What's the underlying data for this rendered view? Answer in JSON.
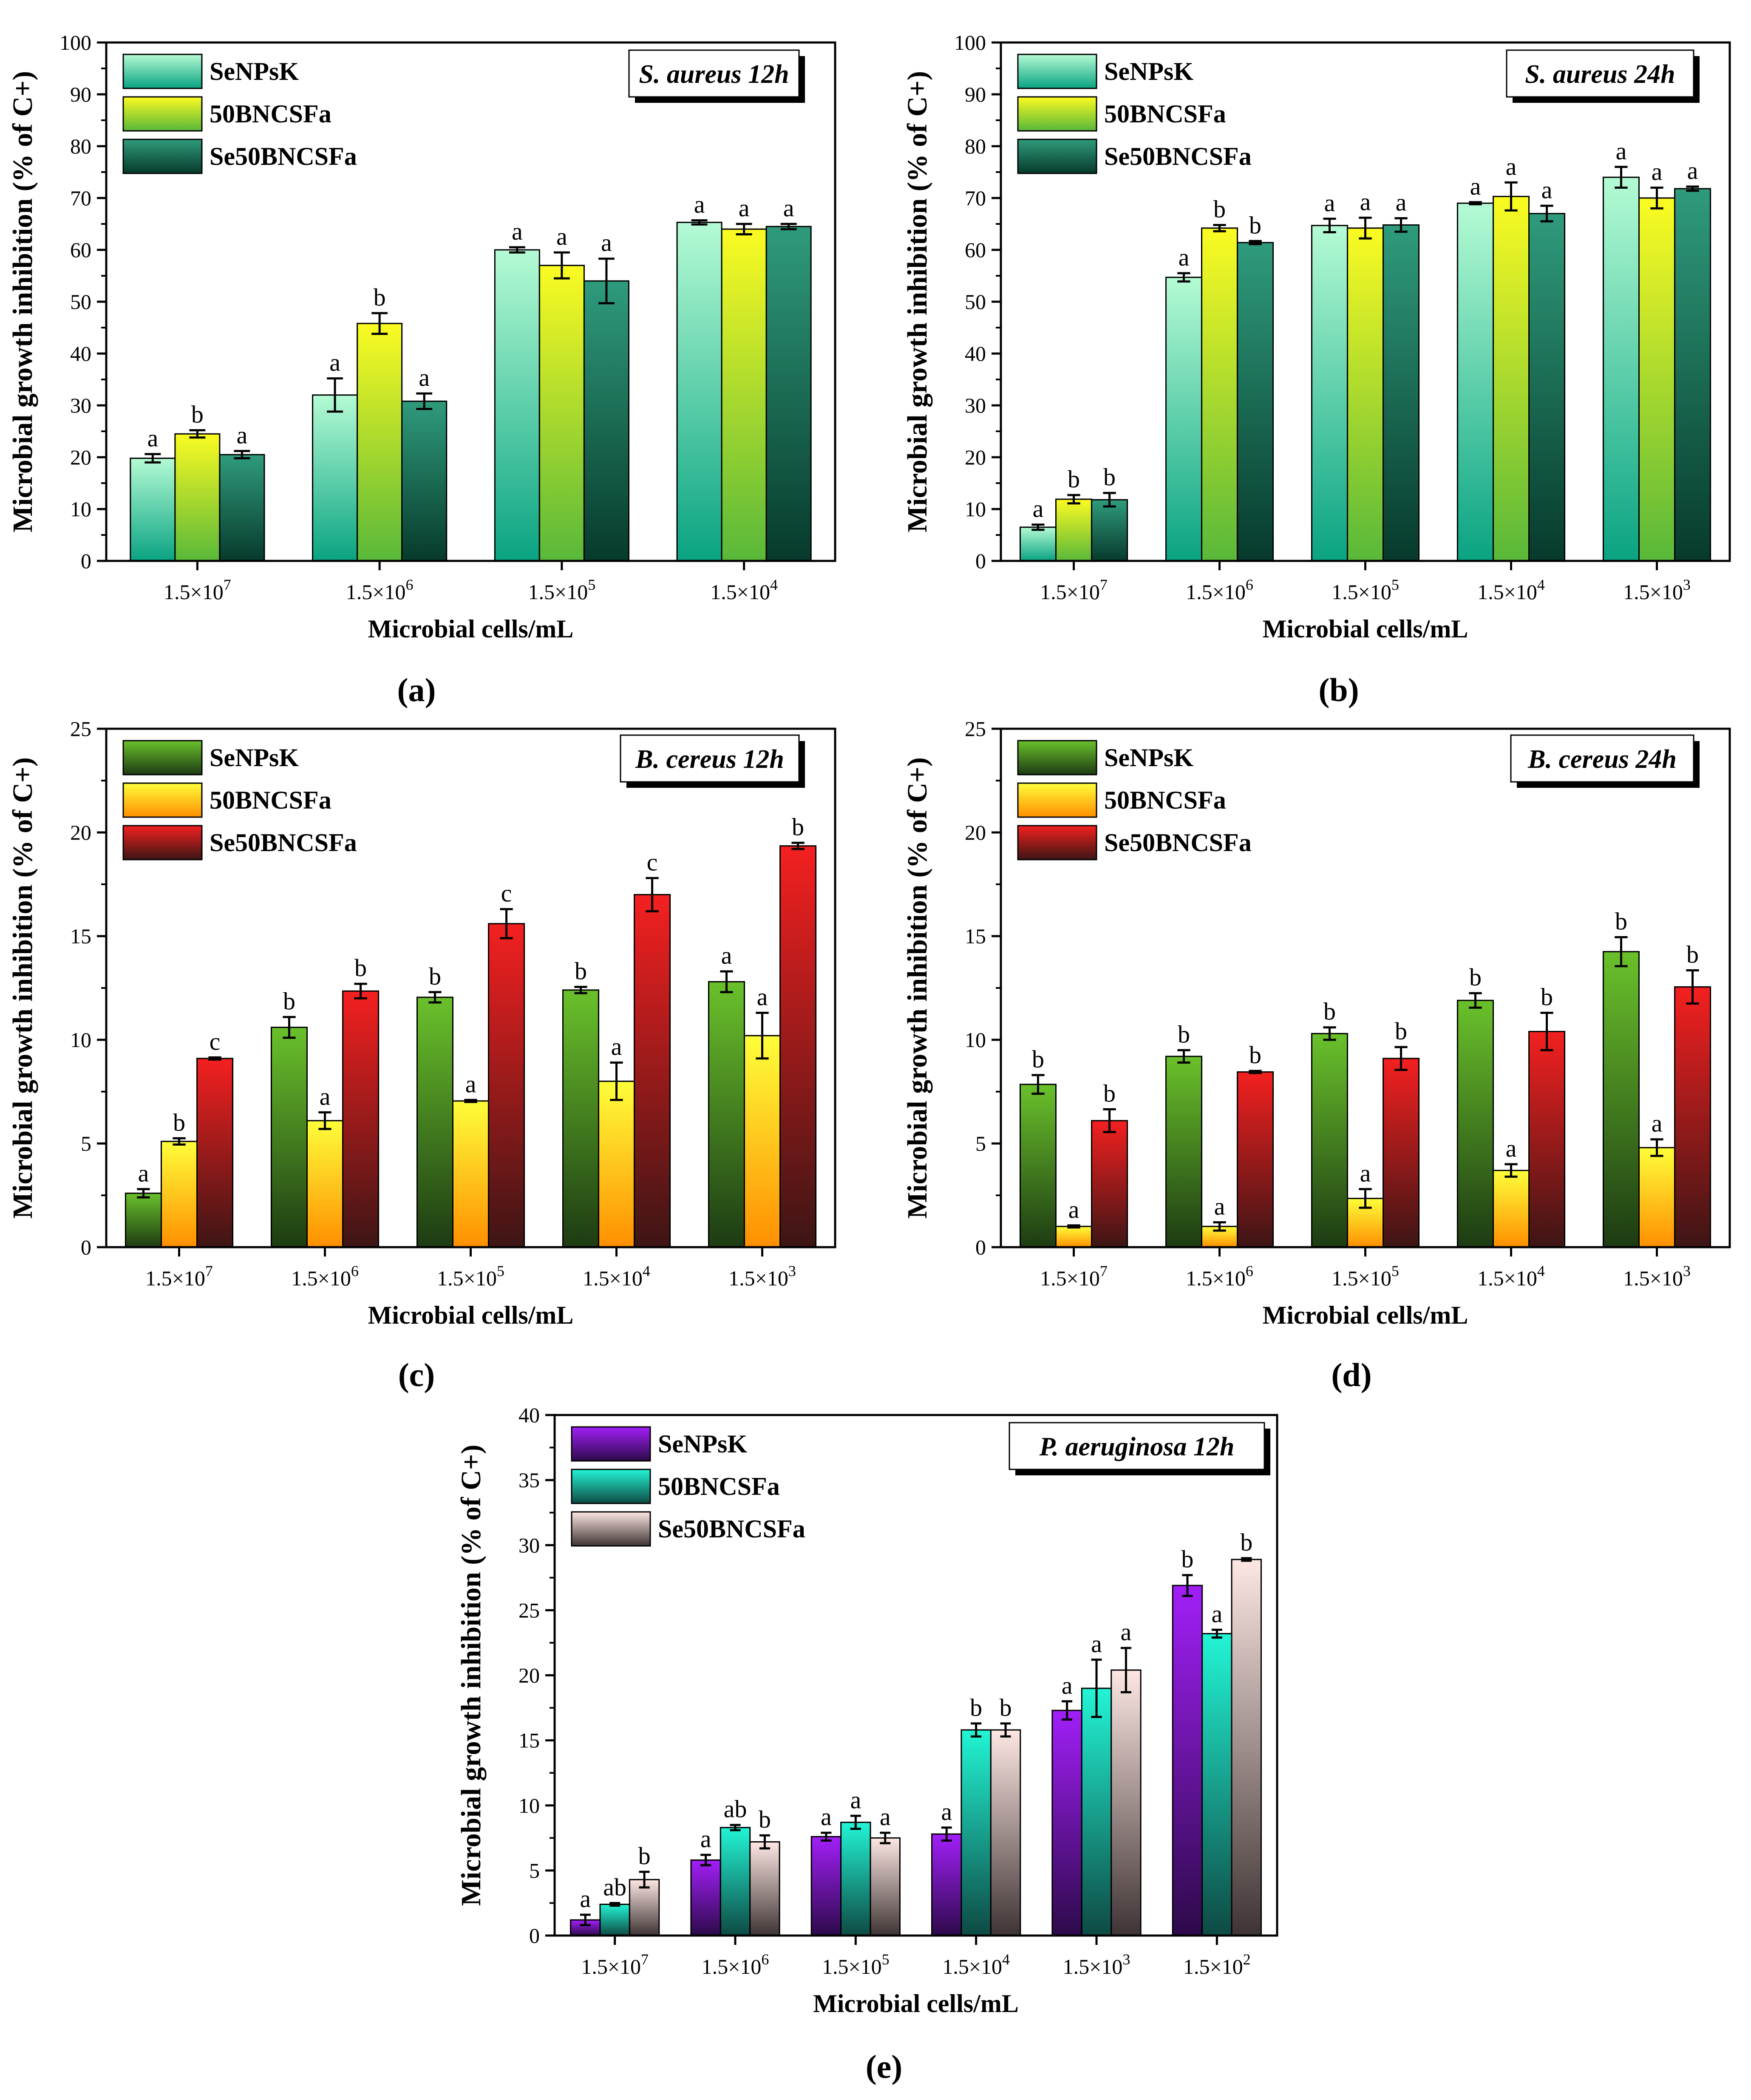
{
  "panel_tags": [
    "(a)",
    "(b)",
    "(c)",
    "(d)",
    "(e)"
  ],
  "series_colors": {
    "s_aureus": [
      [
        "#b4fbd4",
        "#0aa382"
      ],
      [
        "#fbfb22",
        "#59b83a"
      ],
      [
        "#2f9b7c",
        "#073a2c"
      ]
    ],
    "b_cereus": [
      [
        "#6ac12b",
        "#1d3b13"
      ],
      [
        "#fefe3a",
        "#ff8f00"
      ],
      [
        "#f42020",
        "#3d1515"
      ]
    ],
    "p_aeruginosa": [
      [
        "#a21ff8",
        "#2d0a4a"
      ],
      [
        "#22f5d5",
        "#0e4a44"
      ],
      [
        "#fde7e3",
        "#3e3434"
      ]
    ]
  },
  "chart_data": [
    {
      "panel": "(a)",
      "type": "bar",
      "inset_label": "S. aureus 12h",
      "xlabel": "Microbial cells/mL",
      "ylabel": "Microbial growth inhibition (% of C+)",
      "ylim": [
        0,
        100
      ],
      "yticks": [
        0,
        10,
        20,
        30,
        40,
        50,
        60,
        70,
        80,
        90,
        100
      ],
      "categories": [
        {
          "base": "1.5×10",
          "exp": "7"
        },
        {
          "base": "1.5×10",
          "exp": "6"
        },
        {
          "base": "1.5×10",
          "exp": "5"
        },
        {
          "base": "1.5×10",
          "exp": "4"
        }
      ],
      "legend_position": "top-left",
      "series": [
        {
          "name": "SeNPsK",
          "values": [
            19.8,
            32.0,
            60.0,
            65.3
          ],
          "errors": [
            0.8,
            3.2,
            0.5,
            0.4
          ],
          "labels": [
            "a",
            "a",
            "a",
            "a"
          ]
        },
        {
          "name": "50BNCSFa",
          "values": [
            24.5,
            45.8,
            57.0,
            64.0
          ],
          "errors": [
            0.7,
            2.0,
            2.5,
            1.0
          ],
          "labels": [
            "b",
            "b",
            "a",
            "a"
          ]
        },
        {
          "name": "Se50BNCSFa",
          "values": [
            20.5,
            30.8,
            54.0,
            64.5
          ],
          "errors": [
            0.7,
            1.5,
            4.3,
            0.5
          ],
          "labels": [
            "a",
            "a",
            "a",
            "a"
          ]
        }
      ]
    },
    {
      "panel": "(b)",
      "type": "bar",
      "inset_label": "S. aureus 24h",
      "xlabel": "Microbial cells/mL",
      "ylabel": "Microbial growth inhibition (% of C+)",
      "ylim": [
        0,
        100
      ],
      "yticks": [
        0,
        10,
        20,
        30,
        40,
        50,
        60,
        70,
        80,
        90,
        100
      ],
      "categories": [
        {
          "base": "1.5×10",
          "exp": "7"
        },
        {
          "base": "1.5×10",
          "exp": "6"
        },
        {
          "base": "1.5×10",
          "exp": "5"
        },
        {
          "base": "1.5×10",
          "exp": "4"
        },
        {
          "base": "1.5×10",
          "exp": "3"
        }
      ],
      "legend_position": "top-left",
      "series": [
        {
          "name": "SeNPsK",
          "values": [
            6.5,
            54.7,
            64.7,
            69.0,
            74.0
          ],
          "errors": [
            0.5,
            0.8,
            1.3,
            0.2,
            2.0
          ],
          "labels": [
            "a",
            "a",
            "a",
            "a",
            "a"
          ]
        },
        {
          "name": "50BNCSFa",
          "values": [
            11.9,
            64.2,
            64.2,
            70.3,
            70.0
          ],
          "errors": [
            0.8,
            0.6,
            2.0,
            2.7,
            2.0
          ],
          "labels": [
            "b",
            "b",
            "a",
            "a",
            "a"
          ]
        },
        {
          "name": "Se50BNCSFa",
          "values": [
            11.8,
            61.4,
            64.8,
            67.0,
            71.8
          ],
          "errors": [
            1.3,
            0.3,
            1.3,
            1.5,
            0.4
          ],
          "labels": [
            "b",
            "b",
            "a",
            "a",
            "a"
          ]
        }
      ]
    },
    {
      "panel": "(c)",
      "type": "bar",
      "inset_label": "B. cereus 12h",
      "xlabel": "Microbial cells/mL",
      "ylabel": "Microbial growth inhibition (% of C+)",
      "ylim": [
        0,
        25
      ],
      "yticks": [
        0,
        5,
        10,
        15,
        20,
        25
      ],
      "categories": [
        {
          "base": "1.5×10",
          "exp": "7"
        },
        {
          "base": "1.5×10",
          "exp": "6"
        },
        {
          "base": "1.5×10",
          "exp": "5"
        },
        {
          "base": "1.5×10",
          "exp": "4"
        },
        {
          "base": "1.5×10",
          "exp": "3"
        }
      ],
      "legend_position": "top-left",
      "series": [
        {
          "name": "SeNPsK",
          "values": [
            2.6,
            10.6,
            12.05,
            12.4,
            12.8
          ],
          "errors": [
            0.2,
            0.5,
            0.25,
            0.15,
            0.5
          ],
          "labels": [
            "a",
            "b",
            "b",
            "b",
            "a"
          ]
        },
        {
          "name": "50BNCSFa",
          "values": [
            5.1,
            6.1,
            7.05,
            8.0,
            10.2
          ],
          "errors": [
            0.15,
            0.4,
            0.05,
            0.9,
            1.1
          ],
          "labels": [
            "b",
            "a",
            "a",
            "a",
            "a"
          ]
        },
        {
          "name": "Se50BNCSFa",
          "values": [
            9.1,
            12.35,
            15.6,
            17.0,
            19.35
          ],
          "errors": [
            0.05,
            0.35,
            0.7,
            0.8,
            0.15
          ],
          "labels": [
            "c",
            "b",
            "c",
            "c",
            "b"
          ]
        }
      ]
    },
    {
      "panel": "(d)",
      "type": "bar",
      "inset_label": "B. cereus 24h",
      "xlabel": "Microbial cells/mL",
      "ylabel": "Microbial growth inhibition (% of C+)",
      "ylim": [
        0,
        25
      ],
      "yticks": [
        0,
        5,
        10,
        15,
        20,
        25
      ],
      "categories": [
        {
          "base": "1.5×10",
          "exp": "7"
        },
        {
          "base": "1.5×10",
          "exp": "6"
        },
        {
          "base": "1.5×10",
          "exp": "5"
        },
        {
          "base": "1.5×10",
          "exp": "4"
        },
        {
          "base": "1.5×10",
          "exp": "3"
        }
      ],
      "legend_position": "top-left",
      "series": [
        {
          "name": "SeNPsK",
          "values": [
            7.85,
            9.2,
            10.3,
            11.9,
            14.25
          ],
          "errors": [
            0.45,
            0.3,
            0.3,
            0.35,
            0.7
          ],
          "labels": [
            "b",
            "b",
            "b",
            "b",
            "b"
          ]
        },
        {
          "name": "50BNCSFa",
          "values": [
            1.0,
            1.0,
            2.35,
            3.7,
            4.8
          ],
          "errors": [
            0.05,
            0.2,
            0.45,
            0.3,
            0.4
          ],
          "labels": [
            "a",
            "a",
            "a",
            "a",
            "a"
          ]
        },
        {
          "name": "Se50BNCSFa",
          "values": [
            6.1,
            8.45,
            9.1,
            10.4,
            12.55
          ],
          "errors": [
            0.55,
            0.05,
            0.55,
            0.9,
            0.8
          ],
          "labels": [
            "b",
            "b",
            "b",
            "b",
            "b"
          ]
        }
      ]
    },
    {
      "panel": "(e)",
      "type": "bar",
      "inset_label": "P. aeruginosa 12h",
      "xlabel": "Microbial cells/mL",
      "ylabel": "Microbial growth inhibition (% of C+)",
      "ylim": [
        0,
        40
      ],
      "yticks": [
        0,
        5,
        10,
        15,
        20,
        25,
        30,
        35,
        40
      ],
      "categories": [
        {
          "base": "1.5×10",
          "exp": "7"
        },
        {
          "base": "1.5×10",
          "exp": "6"
        },
        {
          "base": "1.5×10",
          "exp": "5"
        },
        {
          "base": "1.5×10",
          "exp": "4"
        },
        {
          "base": "1.5×10",
          "exp": "3"
        },
        {
          "base": "1.5×10",
          "exp": "2"
        }
      ],
      "legend_position": "top-left",
      "series": [
        {
          "name": "SeNPsK",
          "values": [
            1.2,
            5.8,
            7.6,
            7.8,
            17.3,
            26.9
          ],
          "errors": [
            0.4,
            0.4,
            0.3,
            0.5,
            0.7,
            0.8
          ],
          "labels": [
            "a",
            "a",
            "a",
            "a",
            "a",
            "b"
          ]
        },
        {
          "name": "50BNCSFa",
          "values": [
            2.4,
            8.3,
            8.7,
            15.8,
            19.0,
            23.2
          ],
          "errors": [
            0.1,
            0.2,
            0.5,
            0.5,
            2.2,
            0.3
          ],
          "labels": [
            "ab",
            "ab",
            "a",
            "b",
            "a",
            "a"
          ]
        },
        {
          "name": "Se50BNCSFa",
          "values": [
            4.3,
            7.2,
            7.5,
            15.8,
            20.4,
            28.9
          ],
          "errors": [
            0.6,
            0.5,
            0.4,
            0.5,
            1.7,
            0.1
          ],
          "labels": [
            "b",
            "b",
            "a",
            "b",
            "a",
            "b"
          ]
        }
      ]
    }
  ]
}
